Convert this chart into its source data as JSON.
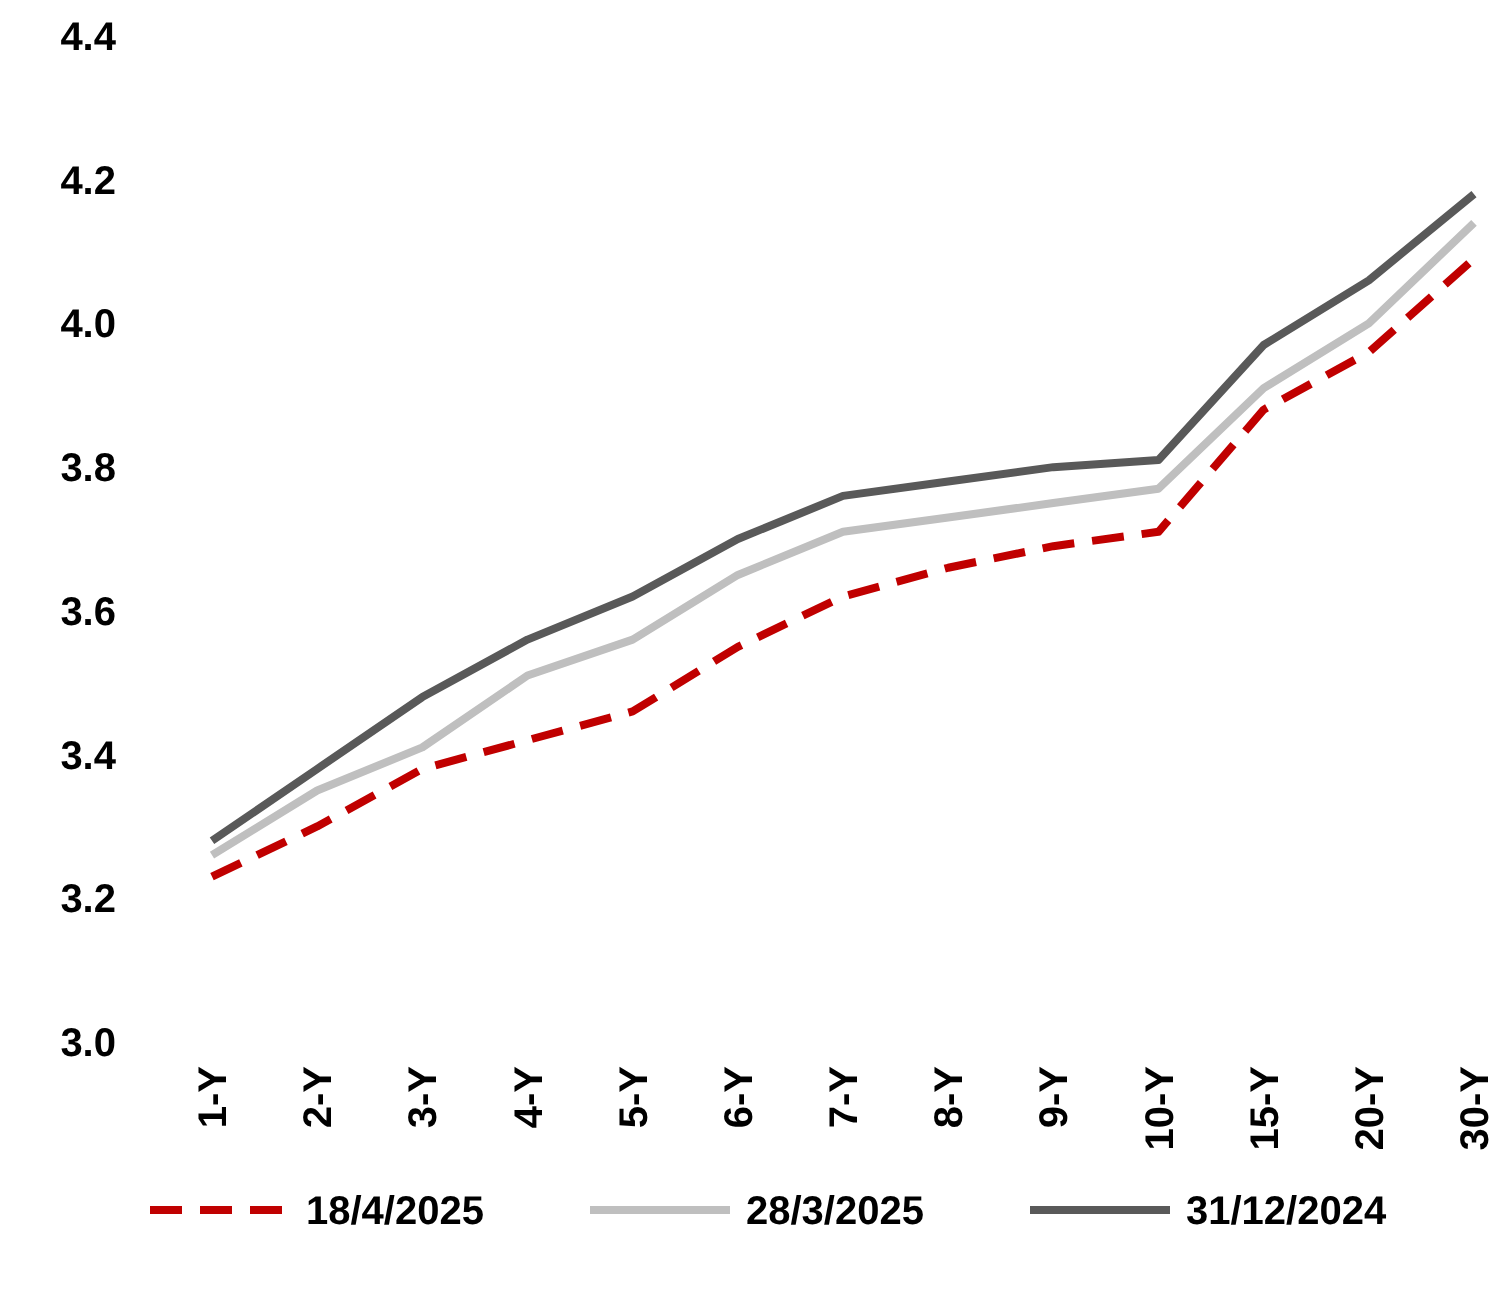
{
  "chart_data": {
    "type": "line",
    "categories": [
      "1-Y",
      "2-Y",
      "3-Y",
      "4-Y",
      "5-Y",
      "6-Y",
      "7-Y",
      "8-Y",
      "9-Y",
      "10-Y",
      "15-Y",
      "20-Y",
      "30-Y"
    ],
    "series": [
      {
        "name": "18/4/2025",
        "color": "#c00000",
        "line_style": "dashed",
        "values": [
          3.23,
          3.3,
          3.38,
          3.42,
          3.46,
          3.55,
          3.62,
          3.66,
          3.69,
          3.71,
          3.88,
          3.96,
          4.09
        ]
      },
      {
        "name": "28/3/2025",
        "color": "#bfbfbf",
        "line_style": "solid",
        "values": [
          3.26,
          3.35,
          3.41,
          3.51,
          3.56,
          3.65,
          3.71,
          3.73,
          3.75,
          3.77,
          3.91,
          4.0,
          4.14
        ]
      },
      {
        "name": "31/12/2024",
        "color": "#595959",
        "line_style": "solid",
        "values": [
          3.28,
          3.38,
          3.48,
          3.56,
          3.62,
          3.7,
          3.76,
          3.78,
          3.8,
          3.81,
          3.97,
          4.06,
          4.18
        ]
      }
    ],
    "ylim": [
      3.0,
      4.4
    ],
    "yticks": [
      {
        "value": 3.0,
        "label": "3.0"
      },
      {
        "value": 3.2,
        "label": "3.2"
      },
      {
        "value": 3.4,
        "label": "3.4"
      },
      {
        "value": 3.6,
        "label": "3.6"
      },
      {
        "value": 3.8,
        "label": "3.8"
      },
      {
        "value": 4.0,
        "label": "4.0"
      },
      {
        "value": 4.2,
        "label": "4.2"
      },
      {
        "value": 4.4,
        "label": "4.4"
      }
    ],
    "legend": "bottom",
    "marker": "none"
  }
}
